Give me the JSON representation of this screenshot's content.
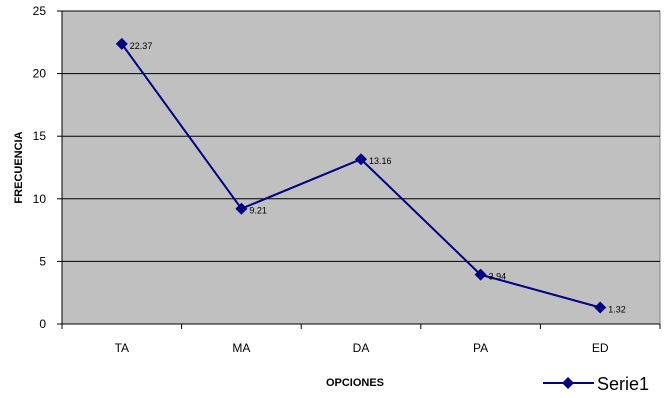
{
  "chart_data": {
    "type": "line",
    "categories": [
      "TA",
      "MA",
      "DA",
      "PA",
      "ED"
    ],
    "series": [
      {
        "name": "Serie1",
        "values": [
          22.37,
          9.21,
          13.16,
          3.94,
          1.32
        ],
        "data_labels": [
          "22.37",
          "9.21",
          "13.16",
          "3.94",
          "1.32"
        ]
      }
    ],
    "xlabel": "OPCIONES",
    "ylabel": "FRECUENCIA",
    "ylim": [
      0,
      25
    ],
    "yticks": [
      0,
      5,
      10,
      15,
      20,
      25
    ],
    "grid": true,
    "legend_position": "bottom-right",
    "colors": {
      "plot_bg": "#c0c0c0",
      "series_line": "#000080",
      "gridline": "#000000"
    }
  }
}
